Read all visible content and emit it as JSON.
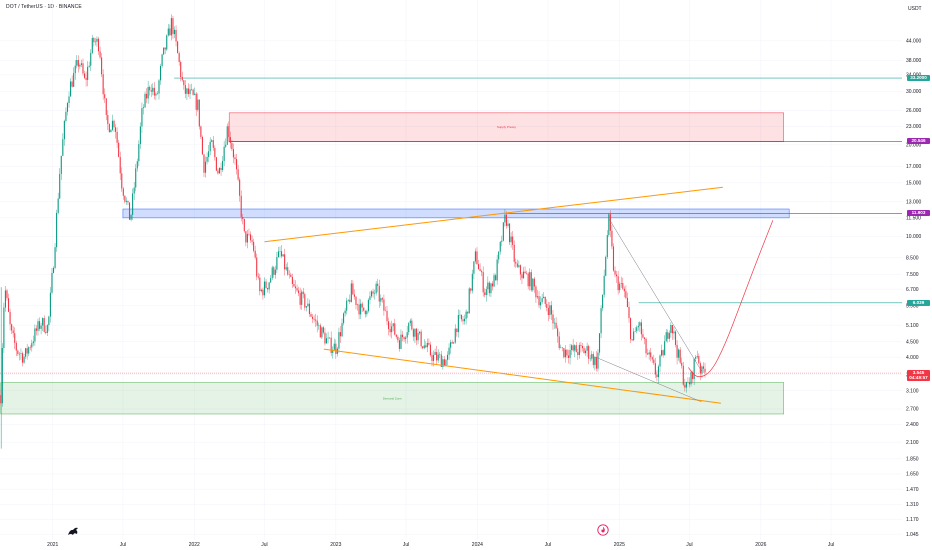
{
  "header": {
    "title": "DOT / TetherUS · 1D · BINANCE",
    "currency": "USDT"
  },
  "chart_data": {
    "type": "candlestick",
    "y_scale": "log",
    "ylim": [
      1.0,
      60.0
    ],
    "xlim": [
      "2020-08-18",
      "2026-12-31"
    ],
    "y_ticks": [
      "44.000",
      "38.000",
      "34.000",
      "30.000",
      "26.000",
      "23.000",
      "20.000",
      "17.000",
      "15.000",
      "13.000",
      "11.500",
      "10.000",
      "8.500",
      "7.500",
      "6.700",
      "5.900",
      "5.100",
      "4.500",
      "4.000",
      "3.500",
      "3.100",
      "2.700",
      "2.400",
      "2.100",
      "1.850",
      "1.650",
      "1.470",
      "1.310",
      "1.170",
      "1.045"
    ],
    "x_ticks": [
      {
        "label": "2021",
        "date": "2021-01-01"
      },
      {
        "label": "Jul",
        "date": "2021-07-01"
      },
      {
        "label": "2022",
        "date": "2022-01-01"
      },
      {
        "label": "Jul",
        "date": "2022-07-01"
      },
      {
        "label": "2023",
        "date": "2023-01-01"
      },
      {
        "label": "Jul",
        "date": "2023-07-01"
      },
      {
        "label": "2024",
        "date": "2024-01-01"
      },
      {
        "label": "Jul",
        "date": "2024-07-01"
      },
      {
        "label": "2025",
        "date": "2025-01-01"
      },
      {
        "label": "Jul",
        "date": "2025-07-01"
      },
      {
        "label": "2026",
        "date": "2026-01-01"
      },
      {
        "label": "Jul",
        "date": "2026-07-01"
      }
    ],
    "price_path": [
      [
        "2020-08-20",
        3.0
      ],
      [
        "2020-08-22",
        2.9
      ],
      [
        "2020-08-25",
        5.5
      ],
      [
        "2020-09-01",
        6.6
      ],
      [
        "2020-09-15",
        4.8
      ],
      [
        "2020-10-01",
        4.2
      ],
      [
        "2020-10-20",
        4.0
      ],
      [
        "2020-11-10",
        4.6
      ],
      [
        "2020-12-01",
        5.2
      ],
      [
        "2020-12-20",
        5.0
      ],
      [
        "2021-01-05",
        9.0
      ],
      [
        "2021-01-20",
        17.0
      ],
      [
        "2021-02-10",
        30.0
      ],
      [
        "2021-02-25",
        34.0
      ],
      [
        "2021-03-10",
        38.0
      ],
      [
        "2021-03-25",
        32.0
      ],
      [
        "2021-04-15",
        44.0
      ],
      [
        "2021-05-01",
        43.0
      ],
      [
        "2021-05-20",
        23.0
      ],
      [
        "2021-06-10",
        24.0
      ],
      [
        "2021-06-28",
        15.0
      ],
      [
        "2021-07-20",
        11.3
      ],
      [
        "2021-08-05",
        17.0
      ],
      [
        "2021-08-20",
        26.0
      ],
      [
        "2021-09-10",
        32.0
      ],
      [
        "2021-09-25",
        28.0
      ],
      [
        "2021-10-10",
        38.0
      ],
      [
        "2021-11-04",
        51.0
      ],
      [
        "2021-11-20",
        39.0
      ],
      [
        "2021-12-05",
        30.0
      ],
      [
        "2021-12-25",
        29.0
      ],
      [
        "2022-01-10",
        27.0
      ],
      [
        "2022-01-25",
        17.0
      ],
      [
        "2022-02-15",
        20.0
      ],
      [
        "2022-03-05",
        16.0
      ],
      [
        "2022-03-28",
        23.0
      ],
      [
        "2022-04-15",
        18.0
      ],
      [
        "2022-05-10",
        10.0
      ],
      [
        "2022-06-01",
        9.5
      ],
      [
        "2022-06-18",
        6.5
      ],
      [
        "2022-07-10",
        7.0
      ],
      [
        "2022-08-10",
        8.8
      ],
      [
        "2022-09-10",
        6.8
      ],
      [
        "2022-10-15",
        6.0
      ],
      [
        "2022-11-10",
        5.2
      ],
      [
        "2022-12-15",
        4.4
      ],
      [
        "2023-01-01",
        4.3
      ],
      [
        "2023-02-10",
        6.6
      ],
      [
        "2023-03-10",
        5.6
      ],
      [
        "2023-04-15",
        6.7
      ],
      [
        "2023-05-15",
        5.3
      ],
      [
        "2023-06-15",
        4.5
      ],
      [
        "2023-07-10",
        5.2
      ],
      [
        "2023-08-15",
        4.4
      ],
      [
        "2023-09-10",
        4.0
      ],
      [
        "2023-10-15",
        3.9
      ],
      [
        "2023-11-10",
        5.2
      ],
      [
        "2023-12-01",
        5.3
      ],
      [
        "2023-12-28",
        8.7
      ],
      [
        "2024-01-20",
        6.6
      ],
      [
        "2024-02-15",
        7.2
      ],
      [
        "2024-03-14",
        11.7
      ],
      [
        "2024-04-10",
        7.8
      ],
      [
        "2024-05-15",
        7.2
      ],
      [
        "2024-06-10",
        6.2
      ],
      [
        "2024-07-05",
        5.8
      ],
      [
        "2024-08-05",
        4.2
      ],
      [
        "2024-09-05",
        4.2
      ],
      [
        "2024-10-10",
        4.2
      ],
      [
        "2024-11-05",
        3.8
      ],
      [
        "2024-11-28",
        9.0
      ],
      [
        "2024-12-04",
        11.5
      ],
      [
        "2024-12-20",
        7.3
      ],
      [
        "2025-01-15",
        6.5
      ],
      [
        "2025-02-03",
        4.5
      ],
      [
        "2025-02-20",
        5.2
      ],
      [
        "2025-03-10",
        4.2
      ],
      [
        "2025-04-07",
        3.5
      ],
      [
        "2025-04-20",
        4.0
      ],
      [
        "2025-05-13",
        5.3
      ],
      [
        "2025-06-01",
        4.1
      ],
      [
        "2025-06-22",
        3.15
      ],
      [
        "2025-07-05",
        3.4
      ],
      [
        "2025-07-20",
        4.2
      ],
      [
        "2025-08-01",
        3.5
      ],
      [
        "2025-08-10",
        3.75
      ]
    ],
    "horizontal_levels": [
      {
        "price": 33.2,
        "label": "33.2000",
        "color": "#26a69a"
      },
      {
        "price": 20.546,
        "label": "20.546",
        "color": "#9c27b0"
      },
      {
        "price": 11.903,
        "label": "11.903",
        "color": "#9c27b0"
      },
      {
        "price": 6.039,
        "label": "6.039",
        "color": "#26a69a"
      }
    ],
    "current_price": {
      "price": 3.545,
      "label": "3.545",
      "countdown": "04:49:57",
      "color": "#f23645"
    },
    "zones": [
      {
        "label": "Supply Pressy",
        "from": "2022-04-01",
        "to": "2026-03-01",
        "bottom": 20.5,
        "top": 25.5,
        "fill": "rgba(242,54,69,0.15)",
        "stroke": "#f23645"
      },
      {
        "label": "",
        "from": "2021-07-01",
        "to": "2026-03-15",
        "bottom": 11.5,
        "top": 12.3,
        "fill": "rgba(41,98,255,0.22)",
        "stroke": "#2962ff"
      },
      {
        "label": "Demand Zone",
        "from": "2020-08-20",
        "to": "2026-03-01",
        "bottom": 2.6,
        "top": 3.3,
        "fill": "rgba(76,175,80,0.15)",
        "stroke": "#4caf50"
      }
    ],
    "trendlines": [
      {
        "from": [
          "2022-07-01",
          9.6
        ],
        "to": [
          "2025-09-25",
          14.5
        ],
        "color": "#ff9800"
      },
      {
        "from": [
          "2022-12-01",
          4.25
        ],
        "to": [
          "2025-09-20",
          2.82
        ],
        "color": "#ff9800"
      },
      {
        "from": [
          "2024-11-01",
          4.0
        ],
        "to": [
          "2025-08-01",
          2.85
        ],
        "color": "#787b86"
      },
      {
        "from": [
          "2024-12-04",
          11.5
        ],
        "to": [
          "2025-08-01",
          3.6
        ],
        "color": "#787b86"
      }
    ],
    "projection_curve": {
      "color": "#f23645",
      "points": [
        [
          "2025-06-28",
          3.7
        ],
        [
          "2025-07-20",
          3.4
        ],
        [
          "2025-08-25",
          3.55
        ],
        [
          "2025-10-01",
          4.4
        ],
        [
          "2025-11-10",
          6.0
        ],
        [
          "2025-12-20",
          8.2
        ],
        [
          "2026-02-01",
          11.3
        ]
      ]
    }
  }
}
